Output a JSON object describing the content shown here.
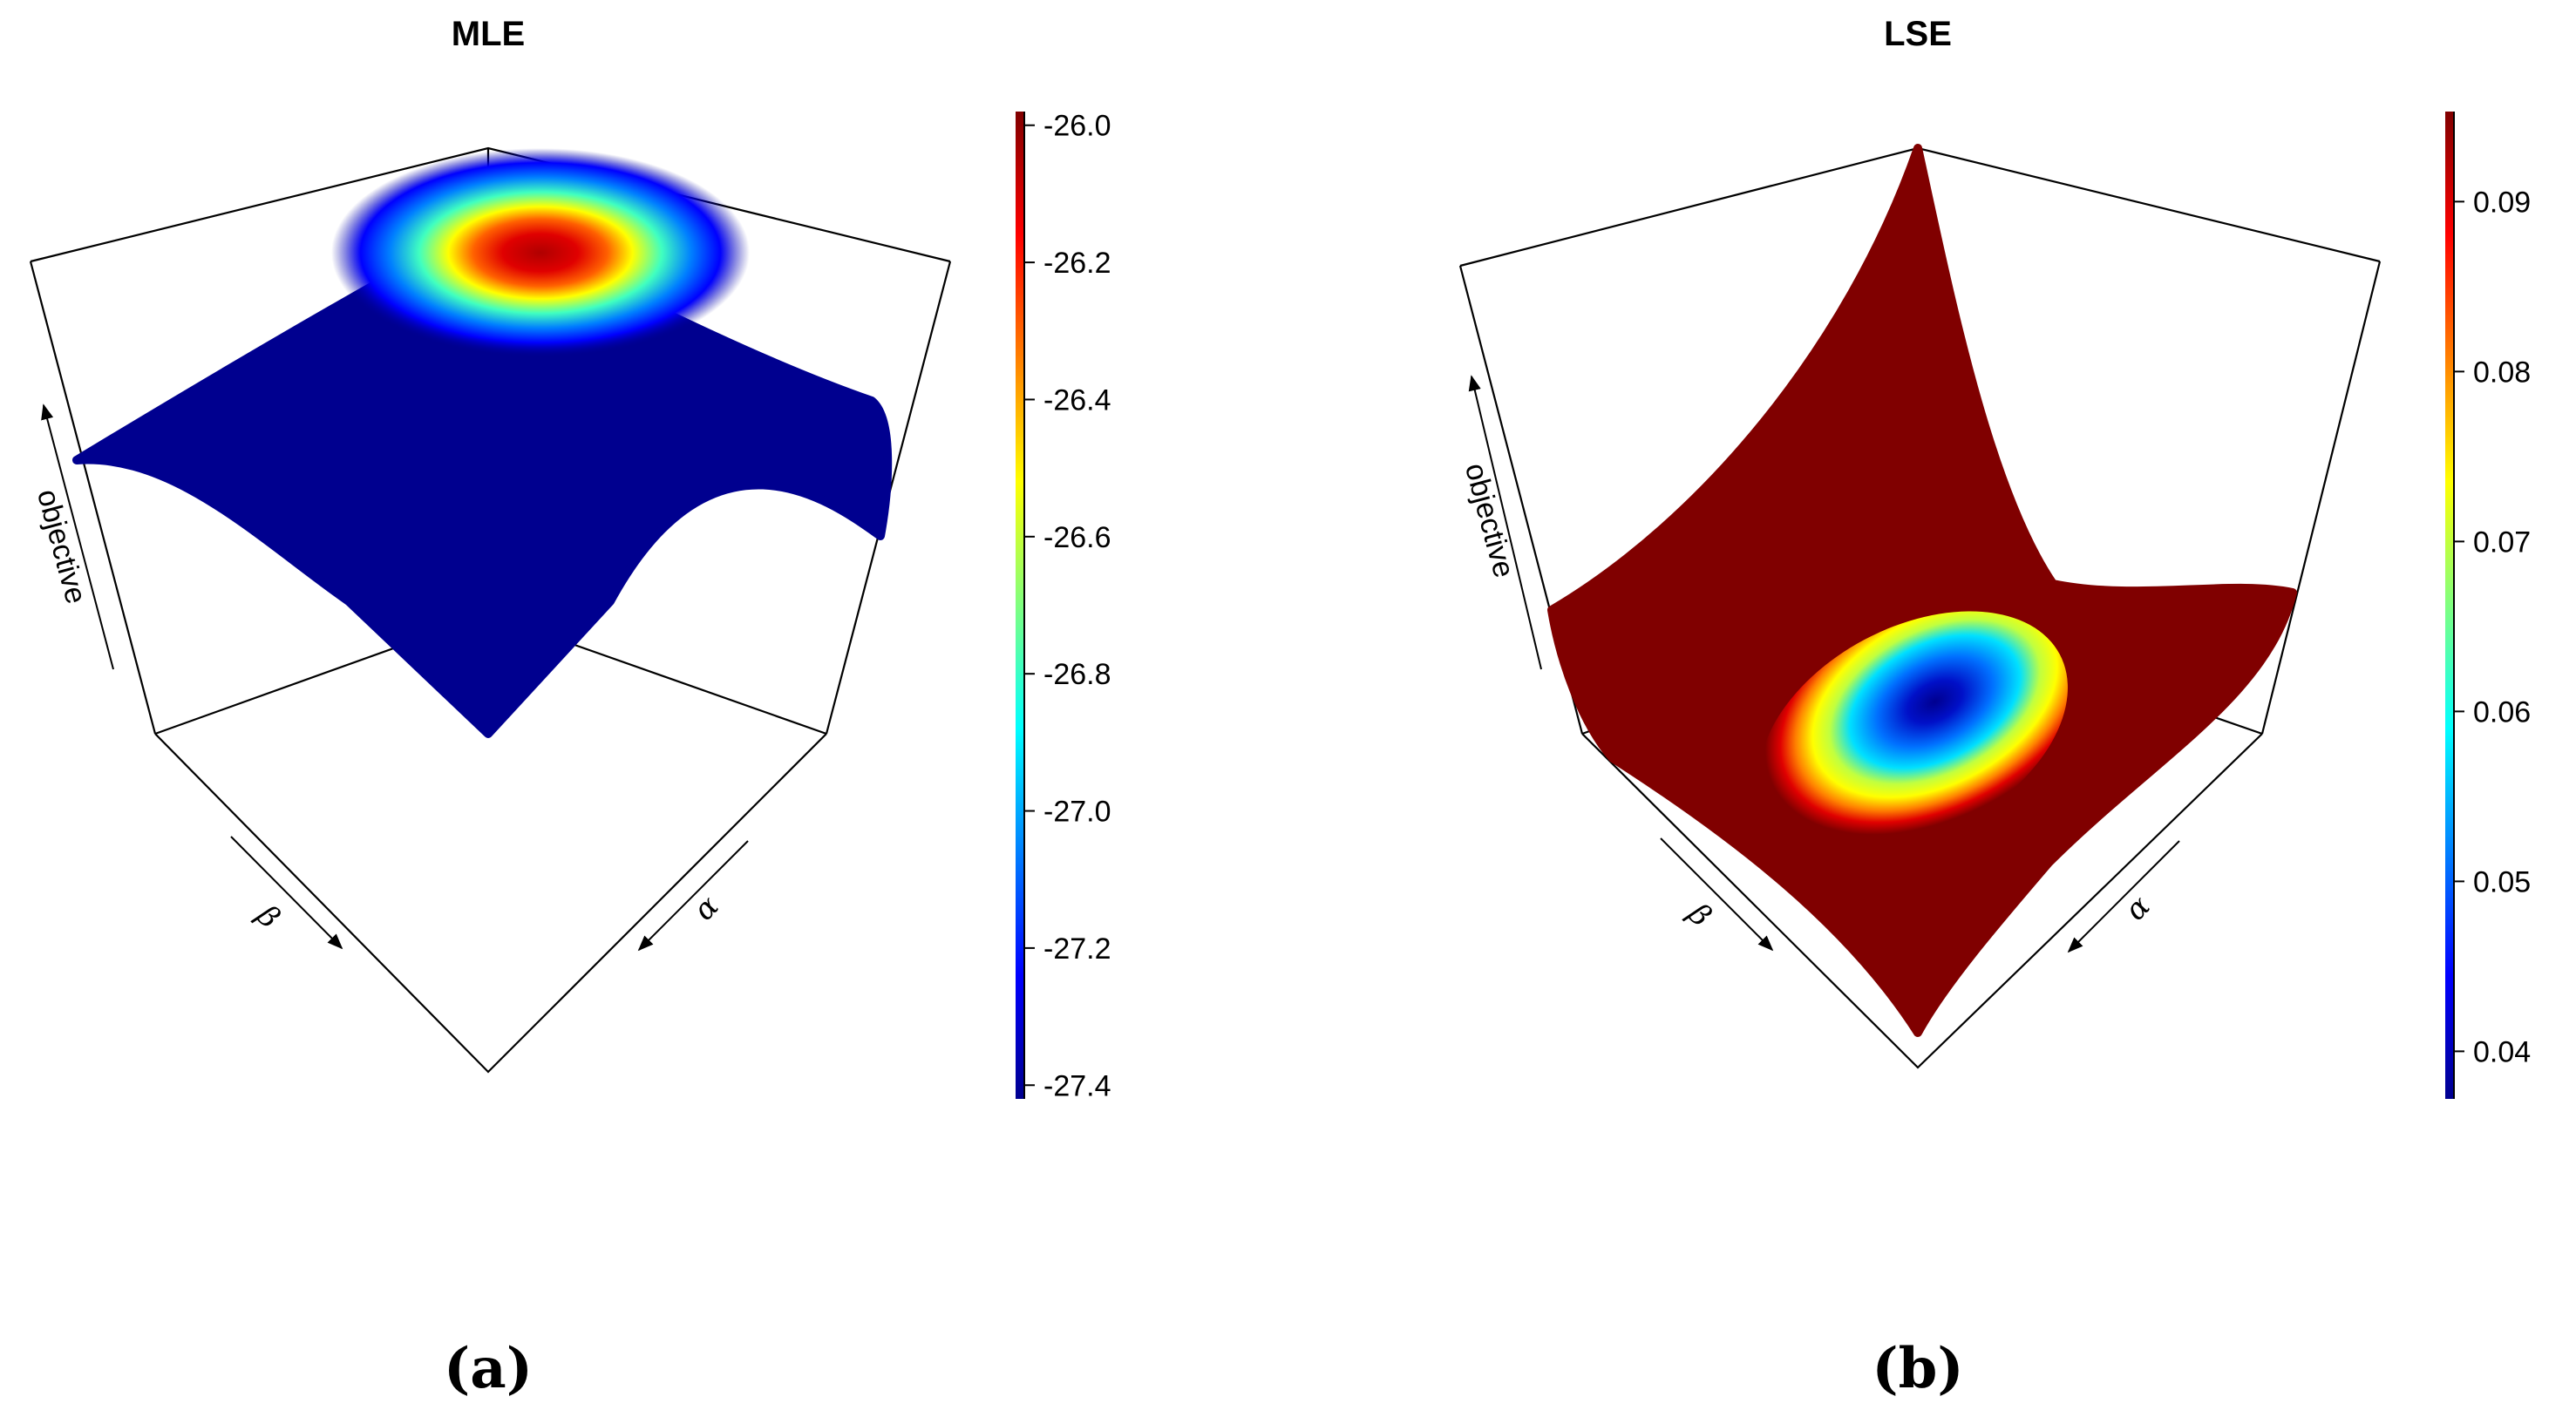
{
  "chart_data": [
    {
      "id": "a",
      "type": "surface3d",
      "title": "MLE",
      "panel_label": "(a)",
      "axis_labels": {
        "z": "objective",
        "x": "α",
        "y": "β"
      },
      "surface_shape": "single peak (maximum) near the back corner, sloping down toward the front",
      "colorbar": {
        "min": -27.42,
        "max": -25.98,
        "ticks": [
          -26.0,
          -26.2,
          -26.4,
          -26.6,
          -26.8,
          -27.0,
          -27.2,
          -27.4
        ],
        "tick_labels": [
          "-26.0",
          "-26.2",
          "-26.4",
          "-26.6",
          "-26.8",
          "-27.0",
          "-27.2",
          "-27.4"
        ]
      }
    },
    {
      "id": "b",
      "type": "surface3d",
      "title": "LSE",
      "panel_label": "(b)",
      "axis_labels": {
        "z": "objective",
        "x": "α",
        "y": "β"
      },
      "surface_shape": "bowl with a single minimum in the middle, rising sharply toward the back corner",
      "colorbar": {
        "min": 0.0372,
        "max": 0.0953,
        "ticks": [
          0.09,
          0.08,
          0.07,
          0.06,
          0.05,
          0.04
        ],
        "tick_labels": [
          "0.09",
          "0.08",
          "0.07",
          "0.06",
          "0.05",
          "0.04"
        ]
      }
    }
  ],
  "colors": {
    "jet": [
      "#00008f",
      "#0000ff",
      "#00ffff",
      "#ffff00",
      "#ff0000",
      "#800000"
    ],
    "axis_line": "#000000",
    "background": "#ffffff"
  }
}
